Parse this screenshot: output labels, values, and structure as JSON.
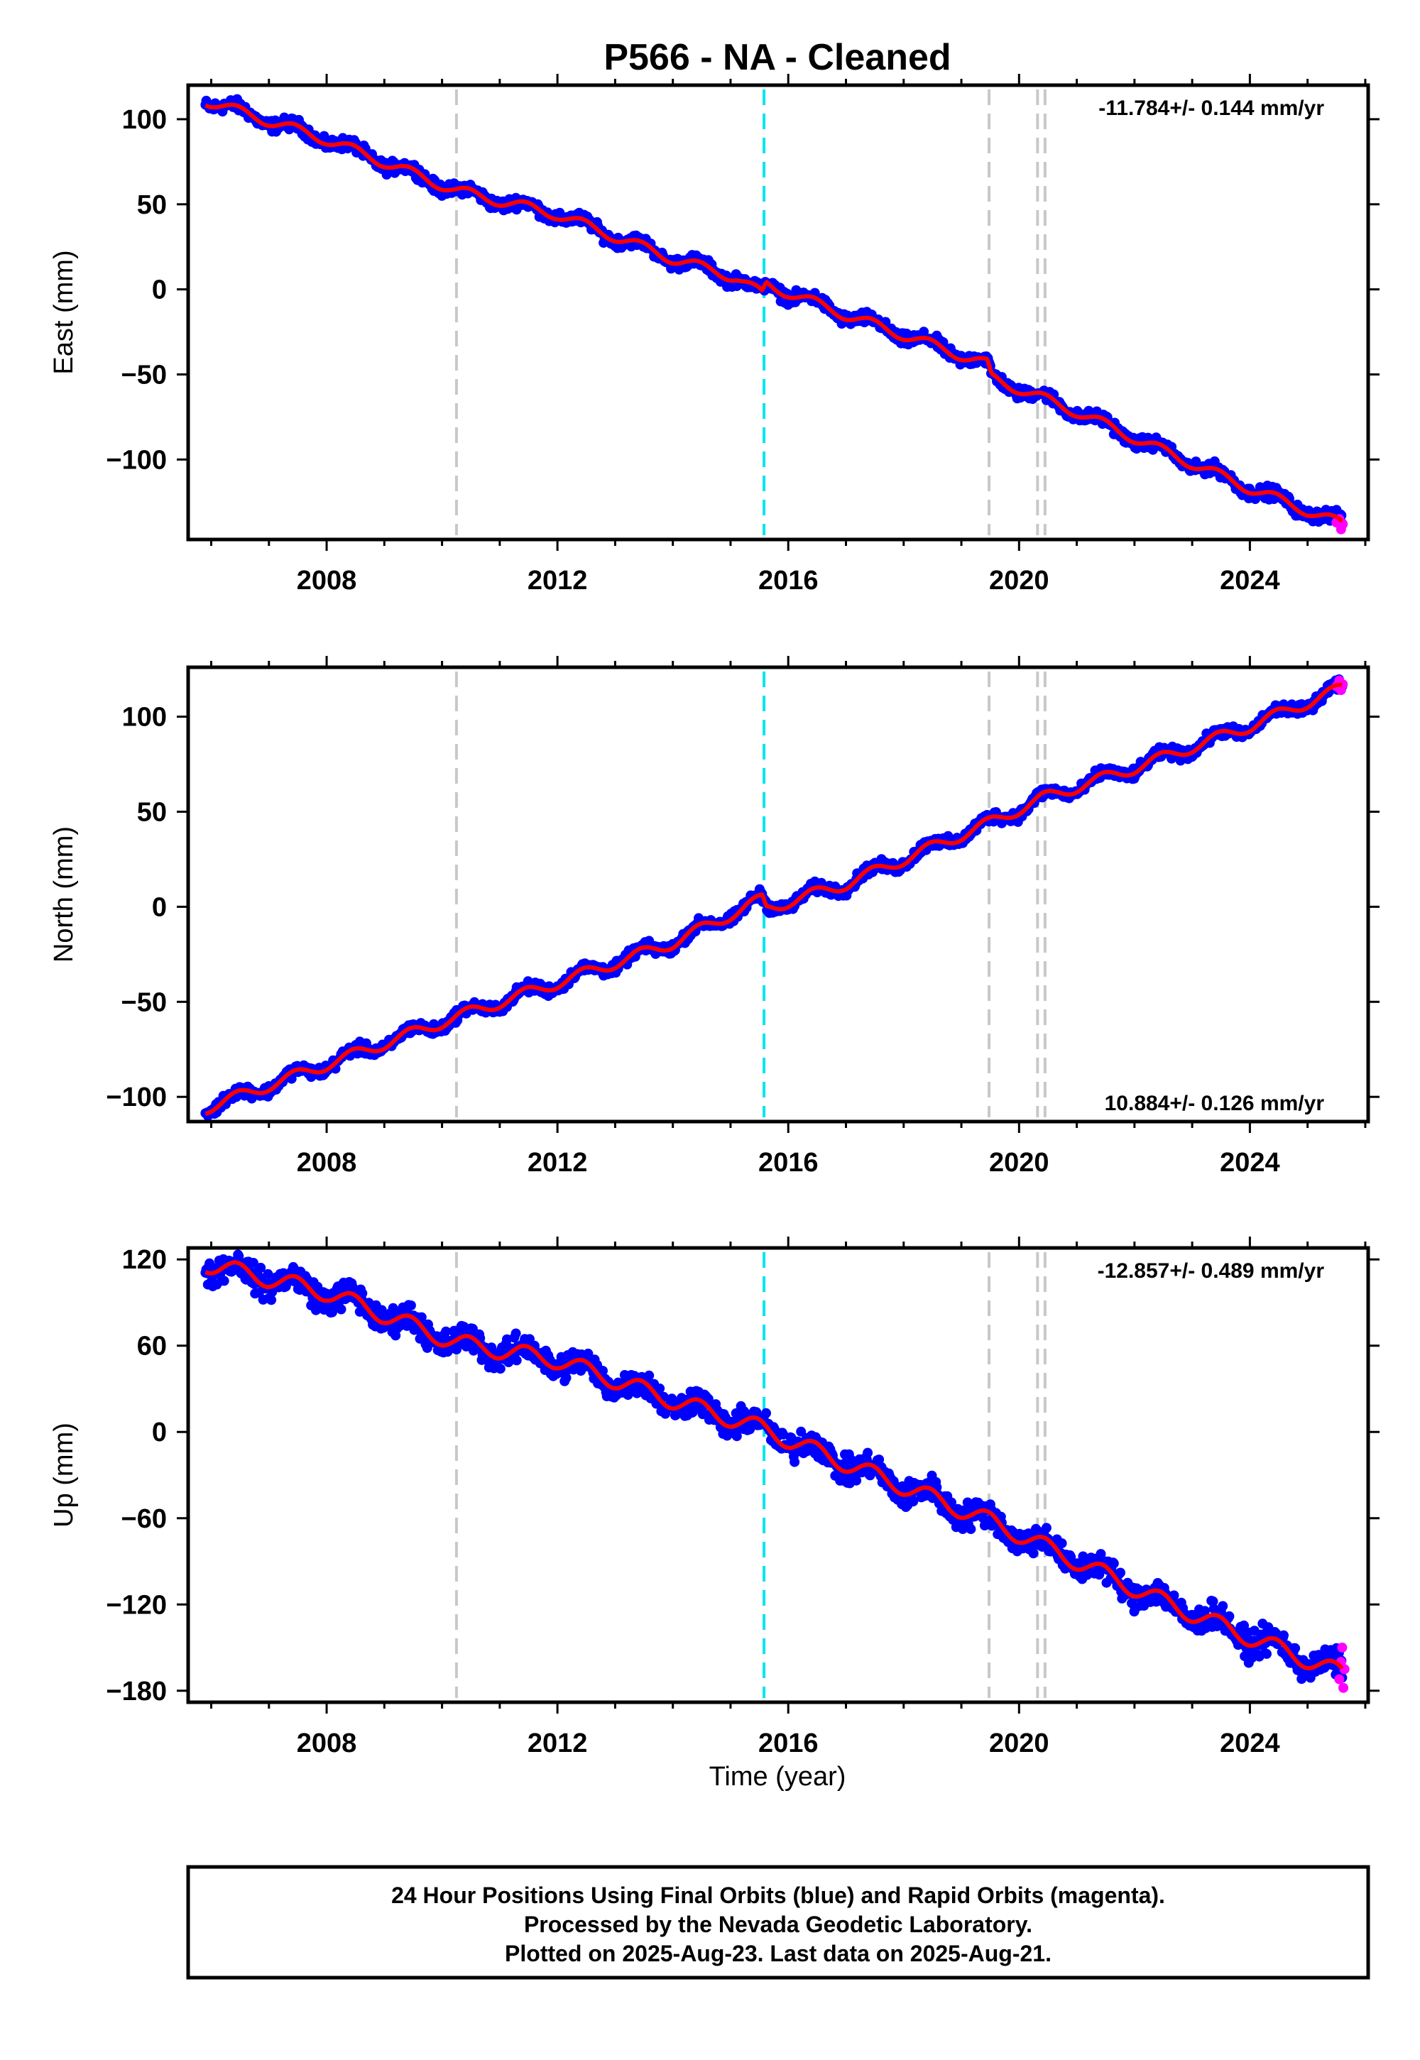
{
  "title": "P566  - NA - Cleaned",
  "xlabel": "Time (year)",
  "note_lines": [
    "24 Hour Positions Using Final Orbits (blue) and Rapid Orbits (magenta).",
    "Processed by the Nevada Geodetic Laboratory.",
    "Plotted on 2025-Aug-23. Last data on 2025-Aug-21."
  ],
  "colors": {
    "final": "#0000ff",
    "rapid": "#ff00ff",
    "model": "#ff0000",
    "event_gray": "#c8c8c8",
    "event_cyan": "#00e5ee"
  },
  "chart_data": [
    {
      "type": "scatter",
      "ylabel": "East (mm)",
      "rate": "-11.784+/- 0.144 mm/yr",
      "rate_position": "top-right",
      "xlim": [
        2005.6,
        2026.05
      ],
      "ylim": [
        -147,
        120
      ],
      "xticks": [
        2008,
        2012,
        2016,
        2020,
        2024
      ],
      "yticks": [
        100,
        50,
        0,
        -50,
        -100
      ],
      "ytick_labels": [
        "100",
        "50",
        "0",
        "−50",
        "−100"
      ],
      "event_lines": [
        {
          "x": 2010.25,
          "color": "gray"
        },
        {
          "x": 2015.58,
          "color": "cyan"
        },
        {
          "x": 2019.48,
          "color": "gray"
        },
        {
          "x": 2020.32,
          "color": "gray"
        },
        {
          "x": 2020.45,
          "color": "gray"
        }
      ],
      "trend": [
        {
          "x": 2005.9,
          "y": 111
        },
        {
          "x": 2008.0,
          "y": 88
        },
        {
          "x": 2010.25,
          "y": 58
        },
        {
          "x": 2012.0,
          "y": 44
        },
        {
          "x": 2014.0,
          "y": 18
        },
        {
          "x": 2015.1,
          "y": 7
        },
        {
          "x": 2015.55,
          "y": -3
        },
        {
          "x": 2015.62,
          "y": 3
        },
        {
          "x": 2017.0,
          "y": -15
        },
        {
          "x": 2019.45,
          "y": -44
        },
        {
          "x": 2019.52,
          "y": -52
        },
        {
          "x": 2021.0,
          "y": -72
        },
        {
          "x": 2022.5,
          "y": -95
        },
        {
          "x": 2024.0,
          "y": -117
        },
        {
          "x": 2025.6,
          "y": -138
        }
      ],
      "seasonal_amplitude": 3.0,
      "scatter_spread": 3.0,
      "rapid_points": [
        {
          "x": 2025.5,
          "y": -137
        },
        {
          "x": 2025.55,
          "y": -135
        },
        {
          "x": 2025.58,
          "y": -141
        },
        {
          "x": 2025.61,
          "y": -138
        }
      ]
    },
    {
      "type": "scatter",
      "ylabel": "North (mm)",
      "rate": "10.884+/- 0.126 mm/yr",
      "rate_position": "bottom-right",
      "xlim": [
        2005.6,
        2026.05
      ],
      "ylim": [
        -113,
        126
      ],
      "xticks": [
        2008,
        2012,
        2016,
        2020,
        2024
      ],
      "yticks": [
        100,
        50,
        0,
        -50,
        -100
      ],
      "ytick_labels": [
        "100",
        "50",
        "0",
        "−50",
        "−100"
      ],
      "event_lines": [
        {
          "x": 2010.25,
          "color": "gray"
        },
        {
          "x": 2015.58,
          "color": "cyan"
        },
        {
          "x": 2019.48,
          "color": "gray"
        },
        {
          "x": 2020.32,
          "color": "gray"
        },
        {
          "x": 2020.45,
          "color": "gray"
        }
      ],
      "trend": [
        {
          "x": 2005.9,
          "y": -106
        },
        {
          "x": 2008.0,
          "y": -83
        },
        {
          "x": 2010.25,
          "y": -58
        },
        {
          "x": 2012.0,
          "y": -40
        },
        {
          "x": 2014.0,
          "y": -19
        },
        {
          "x": 2015.55,
          "y": 4
        },
        {
          "x": 2015.62,
          "y": -1
        },
        {
          "x": 2017.0,
          "y": 12
        },
        {
          "x": 2019.48,
          "y": 44
        },
        {
          "x": 2020.4,
          "y": 57
        },
        {
          "x": 2022.0,
          "y": 73
        },
        {
          "x": 2024.0,
          "y": 95
        },
        {
          "x": 2025.6,
          "y": 115
        }
      ],
      "seasonal_amplitude": 3.0,
      "scatter_spread": 2.5,
      "rapid_points": [
        {
          "x": 2025.5,
          "y": 116
        },
        {
          "x": 2025.55,
          "y": 119
        },
        {
          "x": 2025.58,
          "y": 114
        },
        {
          "x": 2025.61,
          "y": 117
        }
      ]
    },
    {
      "type": "scatter",
      "ylabel": "Up (mm)",
      "rate": "-12.857+/- 0.489 mm/yr",
      "rate_position": "top-right",
      "xlim": [
        2005.6,
        2026.05
      ],
      "ylim": [
        -188,
        128
      ],
      "xticks": [
        2008,
        2012,
        2016,
        2020,
        2024
      ],
      "yticks": [
        120,
        60,
        0,
        -60,
        -120,
        -180
      ],
      "ytick_labels": [
        "120",
        "60",
        "0",
        "−60",
        "−120",
        "−180"
      ],
      "event_lines": [
        {
          "x": 2010.25,
          "color": "gray"
        },
        {
          "x": 2015.58,
          "color": "cyan"
        },
        {
          "x": 2019.48,
          "color": "gray"
        },
        {
          "x": 2020.32,
          "color": "gray"
        },
        {
          "x": 2020.45,
          "color": "gray"
        }
      ],
      "trend": [
        {
          "x": 2005.9,
          "y": 117
        },
        {
          "x": 2008.0,
          "y": 97
        },
        {
          "x": 2010.25,
          "y": 62
        },
        {
          "x": 2012.0,
          "y": 50
        },
        {
          "x": 2014.0,
          "y": 22
        },
        {
          "x": 2015.5,
          "y": 3
        },
        {
          "x": 2017.0,
          "y": -22
        },
        {
          "x": 2019.5,
          "y": -62
        },
        {
          "x": 2021.0,
          "y": -90
        },
        {
          "x": 2022.5,
          "y": -118
        },
        {
          "x": 2024.0,
          "y": -143
        },
        {
          "x": 2025.6,
          "y": -168
        }
      ],
      "seasonal_amplitude": 6.0,
      "scatter_spread": 8.0,
      "rapid_points": [
        {
          "x": 2025.55,
          "y": -172
        },
        {
          "x": 2025.58,
          "y": -160
        },
        {
          "x": 2025.6,
          "y": -150
        },
        {
          "x": 2025.62,
          "y": -178
        },
        {
          "x": 2025.64,
          "y": -165
        }
      ]
    }
  ]
}
